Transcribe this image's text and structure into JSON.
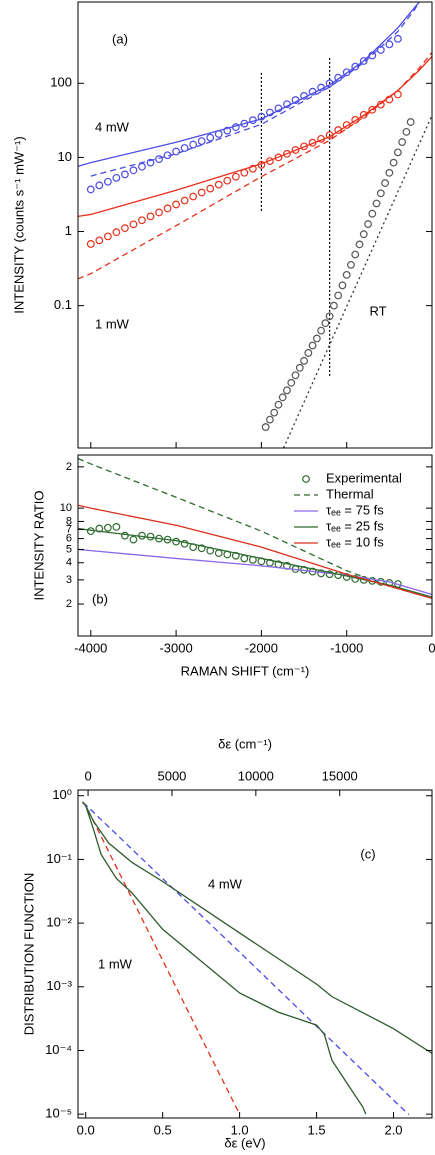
{
  "chart_data": [
    {
      "type": "line",
      "ylabel": "INTENSITY (counts s⁻¹ mW⁻¹)",
      "ylog": true,
      "xlim": [
        -4150,
        0
      ],
      "xticks": [
        -4000,
        -3000,
        -2000,
        -1000,
        0
      ],
      "xtick_labels": false,
      "ylim": [
        0.0012,
        1250
      ],
      "yticks": [
        0.1,
        1,
        10,
        100
      ],
      "annotations": [
        "(a)",
        "4 mW",
        "1 mW",
        "RT"
      ],
      "guides": [
        {
          "x": -2000,
          "y": [
            1.9,
            145
          ]
        },
        {
          "x": -1200,
          "y": [
            0.0113,
            220
          ]
        }
      ],
      "series": [
        {
          "style": "markers",
          "color": "#4a4ae6",
          "x": [
            -4000,
            -3900,
            -3800,
            -3700,
            -3600,
            -3500,
            -3400,
            -3300,
            -3200,
            -3100,
            -3000,
            -2900,
            -2800,
            -2700,
            -2600,
            -2500,
            -2400,
            -2300,
            -2200,
            -2100,
            -2000,
            -1900,
            -1800,
            -1700,
            -1600,
            -1500,
            -1400,
            -1300,
            -1200,
            -1100,
            -1000,
            -900,
            -800,
            -700,
            -600,
            -500,
            -400
          ],
          "values": [
            3.7,
            4.2,
            4.7,
            5.3,
            5.9,
            6.7,
            7.5,
            8.5,
            9.5,
            10.7,
            12.0,
            13.4,
            14.9,
            16.6,
            18.5,
            20.7,
            23.0,
            25.6,
            28.6,
            31.8,
            35.5,
            40.4,
            45.9,
            52.2,
            59.4,
            67.6,
            77.1,
            87.7,
            100,
            119,
            141,
            168,
            200,
            237,
            282,
            335,
            398
          ]
        },
        {
          "style": "solid",
          "color": "#4a4ae6",
          "x": [
            -4150,
            -4000,
            -3000,
            -2000,
            -1200,
            -800,
            -400,
            -150,
            -100
          ],
          "values": [
            7.6,
            8.5,
            16,
            33,
            95,
            200,
            560,
            1250,
            1580
          ]
        },
        {
          "style": "dashed",
          "color": "#4a4ae6",
          "x": [
            -4000,
            -3000,
            -2000,
            -1200,
            -800,
            -400,
            -200,
            -100
          ],
          "values": [
            5.6,
            11.2,
            28,
            89,
            190,
            500,
            1000,
            1580
          ]
        },
        {
          "style": "markers",
          "color": "#e8301c",
          "x": [
            -4000,
            -3900,
            -3800,
            -3700,
            -3600,
            -3500,
            -3400,
            -3300,
            -3200,
            -3100,
            -3000,
            -2900,
            -2800,
            -2700,
            -2600,
            -2500,
            -2400,
            -2300,
            -2200,
            -2100,
            -2000,
            -1900,
            -1800,
            -1700,
            -1600,
            -1500,
            -1400,
            -1300,
            -1200,
            -1100,
            -1000,
            -900,
            -800,
            -700,
            -600,
            -500,
            -400
          ],
          "values": [
            0.68,
            0.76,
            0.86,
            0.98,
            1.11,
            1.25,
            1.42,
            1.6,
            1.81,
            2.05,
            2.32,
            2.62,
            2.97,
            3.36,
            3.8,
            4.29,
            4.86,
            5.49,
            6.21,
            7.03,
            7.94,
            8.91,
            10.0,
            11.2,
            12.6,
            14.1,
            15.8,
            17.8,
            20.0,
            23.4,
            27.4,
            32.1,
            37.6,
            44.0,
            51.6,
            60.4,
            70.8
          ]
        },
        {
          "style": "solid",
          "color": "#e8301c",
          "x": [
            -4150,
            -4000,
            -3000,
            -2000,
            -1200,
            -800,
            -400,
            -150,
            0
          ],
          "values": [
            1.6,
            1.7,
            3.6,
            8.2,
            19,
            37,
            80,
            150,
            230
          ]
        },
        {
          "style": "dashed",
          "color": "#e8301c",
          "x": [
            -4150,
            -4000,
            -3000,
            -2000,
            -1200,
            -800,
            -400,
            -150,
            0
          ],
          "values": [
            0.23,
            0.27,
            1.2,
            5.5,
            17,
            35,
            80,
            160,
            260
          ]
        },
        {
          "style": "markers",
          "color": "#555555",
          "x": [
            -1950,
            -1900,
            -1850,
            -1800,
            -1750,
            -1700,
            -1650,
            -1600,
            -1550,
            -1500,
            -1450,
            -1400,
            -1350,
            -1300,
            -1250,
            -1200,
            -1150,
            -1100,
            -1050,
            -1000,
            -950,
            -900,
            -850,
            -800,
            -750,
            -700,
            -650,
            -600,
            -550,
            -500,
            -450,
            -400,
            -350,
            -300,
            -250
          ],
          "values": [
            0.0023,
            0.0029,
            0.0036,
            0.0046,
            0.0058,
            0.0072,
            0.0091,
            0.0115,
            0.0145,
            0.018,
            0.023,
            0.029,
            0.036,
            0.046,
            0.058,
            0.072,
            0.1,
            0.137,
            0.188,
            0.26,
            0.355,
            0.49,
            0.67,
            0.92,
            1.26,
            1.74,
            2.39,
            3.28,
            4.51,
            6.2,
            8.5,
            11.7,
            16.1,
            22.1,
            30
          ]
        },
        {
          "style": "dotted",
          "color": "#333333",
          "x": [
            -1740,
            0
          ],
          "values": [
            0.0012,
            37
          ]
        }
      ]
    },
    {
      "type": "line",
      "ylabel": "INTENSITY RATIO",
      "xlabel": "RAMAN SHIFT (cm⁻¹)",
      "ylog": true,
      "xlim": [
        -4150,
        0
      ],
      "xticks": [
        -4000,
        -3000,
        -2000,
        -1000,
        0
      ],
      "ylim": [
        1.17,
        24.4
      ],
      "yticks": [
        {
          "value": 20,
          "label": "2"
        },
        10,
        8,
        7,
        6,
        5,
        4,
        3,
        2
      ],
      "annotations": [
        "(b)"
      ],
      "legend": "upper right",
      "series": [
        {
          "name": "Experimental",
          "style": "markers",
          "color": "#2e6b2e",
          "x": [
            -4000,
            -3900,
            -3800,
            -3700,
            -3600,
            -3500,
            -3400,
            -3300,
            -3200,
            -3100,
            -3000,
            -2900,
            -2800,
            -2700,
            -2600,
            -2500,
            -2400,
            -2300,
            -2200,
            -2100,
            -2000,
            -1900,
            -1800,
            -1700,
            -1600,
            -1500,
            -1400,
            -1300,
            -1200,
            -1100,
            -1000,
            -900,
            -800,
            -700,
            -600,
            -500,
            -400
          ],
          "values": [
            6.8,
            7.1,
            7.2,
            7.3,
            6.3,
            5.9,
            6.3,
            6.2,
            6.0,
            5.9,
            5.7,
            5.5,
            5.2,
            5.1,
            4.9,
            4.7,
            4.6,
            4.5,
            4.3,
            4.2,
            4.1,
            4.0,
            3.9,
            3.8,
            3.6,
            3.55,
            3.45,
            3.35,
            3.3,
            3.25,
            3.15,
            3.05,
            3.0,
            2.95,
            2.9,
            2.85,
            2.8
          ]
        },
        {
          "name": "Thermal",
          "style": "dashed",
          "color": "#2e6b2e",
          "x": [
            -4150,
            -4000,
            -3000,
            -2000,
            -1000,
            -500,
            0
          ],
          "values": [
            23,
            21,
            12,
            6.8,
            3.5,
            2.7,
            2.2
          ]
        },
        {
          "name": "τₑₑ = 75 fs",
          "style": "solid",
          "color": "#8a6ae8",
          "x": [
            -4150,
            -4000,
            -3000,
            -2000,
            -1000,
            -500,
            0
          ],
          "values": [
            5.0,
            4.9,
            4.3,
            3.8,
            3.25,
            2.9,
            2.35
          ]
        },
        {
          "name": "τₑₑ = 25 fs",
          "style": "solid",
          "color": "#2e6b2e",
          "x": [
            -4150,
            -4000,
            -3000,
            -2000,
            -1000,
            -500,
            0
          ],
          "values": [
            7.1,
            6.9,
            5.8,
            4.3,
            3.2,
            2.75,
            2.25
          ]
        },
        {
          "name": "τₑₑ = 10 fs",
          "style": "solid",
          "color": "#d8301c",
          "x": [
            -4150,
            -4000,
            -3000,
            -2000,
            -1000,
            -500,
            0
          ],
          "values": [
            10.5,
            10,
            7.5,
            5.2,
            3.3,
            2.7,
            2.2
          ]
        }
      ]
    },
    {
      "type": "line",
      "ylabel": "DISTRIBUTION FUNCTION",
      "xlabel": "δε (eV)",
      "x2label": "δε (cm⁻¹)",
      "ylog": true,
      "xlim": [
        -0.05,
        2.25
      ],
      "xticks": [
        {
          "value": 0,
          "label": "0.0"
        },
        0.5,
        {
          "value": 1,
          "label": "1.0"
        },
        1.5,
        {
          "value": 2,
          "label": "2.0"
        }
      ],
      "x2lim": [
        -600,
        20500
      ],
      "x2ticks": [
        0,
        5000,
        10000,
        15000
      ],
      "ylim": [
        8.7e-06,
        1.23
      ],
      "yticks": [
        {
          "value": 1,
          "label": "10⁰"
        },
        {
          "value": 0.1,
          "label": "10⁻¹"
        },
        {
          "value": 0.01,
          "label": "10⁻²"
        },
        {
          "value": 0.001,
          "label": "10⁻³"
        },
        {
          "value": 0.0001,
          "label": "10⁻⁴"
        },
        {
          "value": 1e-05,
          "label": "10⁻⁵"
        }
      ],
      "annotations": [
        "(c)",
        "4 mW",
        "1 mW"
      ],
      "series": [
        {
          "style": "dashed",
          "color": "#4a4ae6",
          "x": [
            -0.02,
            0,
            0.5,
            1,
            1.5,
            2,
            2.1
          ],
          "values": [
            0.76,
            0.72,
            0.05,
            0.0035,
            0.00024,
            1.66e-05,
            9.8e-06
          ]
        },
        {
          "style": "dashed",
          "color": "#e8301c",
          "x": [
            -0.02,
            0,
            0.25,
            0.5,
            0.75,
            1.0
          ],
          "values": [
            0.8,
            0.7,
            0.043,
            0.0026,
            0.00016,
            1e-05
          ]
        },
        {
          "style": "solid",
          "color": "#2e5a2e",
          "x": [
            -0.02,
            0,
            0.05,
            0.15,
            0.3,
            0.5,
            1.0,
            1.5,
            1.6,
            2.0,
            2.25
          ],
          "values": [
            0.8,
            0.7,
            0.4,
            0.18,
            0.09,
            0.045,
            0.007,
            0.0011,
            0.0007,
            0.00022,
            9e-05
          ]
        },
        {
          "style": "solid",
          "color": "#2e5a2e",
          "x": [
            -0.02,
            0,
            0.05,
            0.1,
            0.2,
            0.3,
            0.5,
            1.0,
            1.25,
            1.5,
            1.55,
            1.6,
            1.7,
            1.8,
            1.82
          ],
          "values": [
            0.8,
            0.7,
            0.3,
            0.12,
            0.05,
            0.03,
            0.008,
            0.0008,
            0.0004,
            0.00025,
            0.00018,
            7e-05,
            3e-05,
            1.3e-05,
            1e-05
          ]
        }
      ]
    }
  ]
}
